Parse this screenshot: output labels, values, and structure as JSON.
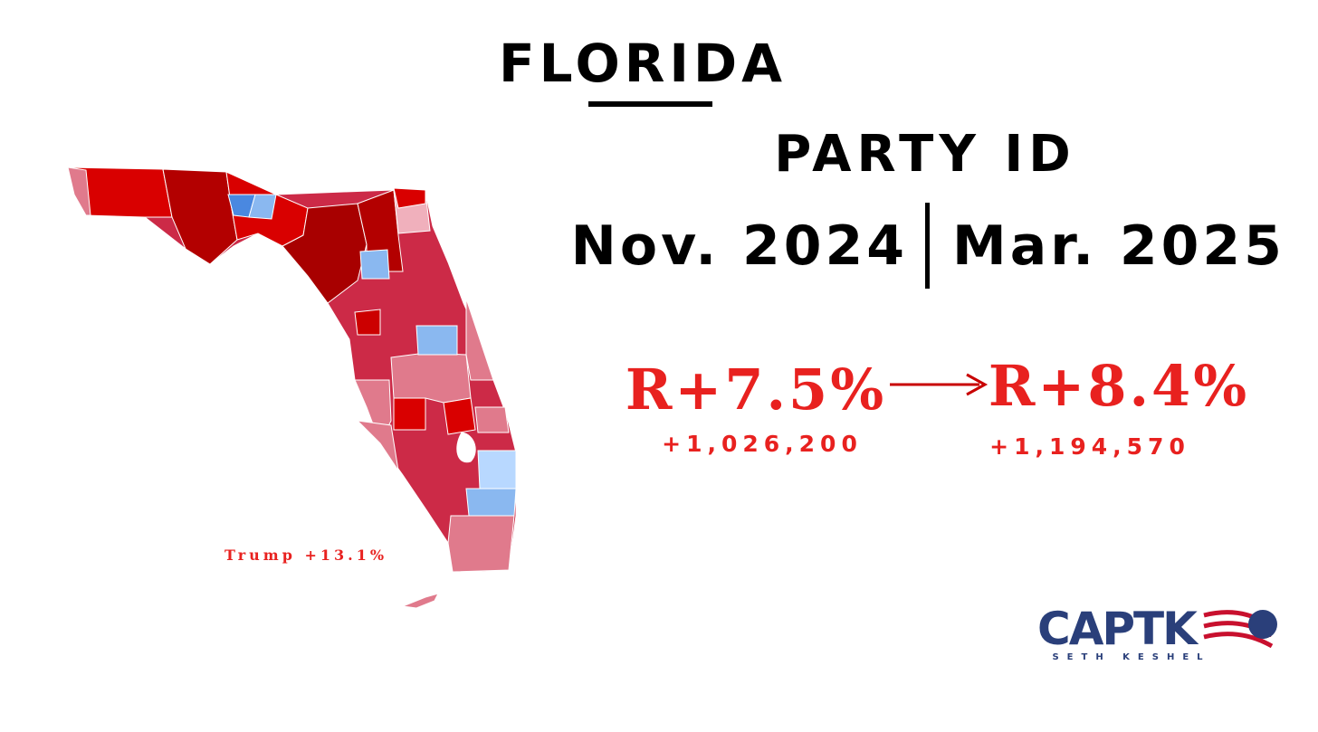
{
  "header": {
    "title": "FLORIDA",
    "subtitle": "PARTY ID"
  },
  "periods": [
    {
      "date": "Nov. 2024",
      "margin": "R+7.5%",
      "advantage": "+1,026,200"
    },
    {
      "date": "Mar. 2025",
      "margin": "R+8.4%",
      "advantage": "+1,194,570"
    }
  ],
  "map": {
    "label": "Trump +13.1%"
  },
  "logo": {
    "name": "CAPTK",
    "tagline": "SETH KESHEL"
  }
}
